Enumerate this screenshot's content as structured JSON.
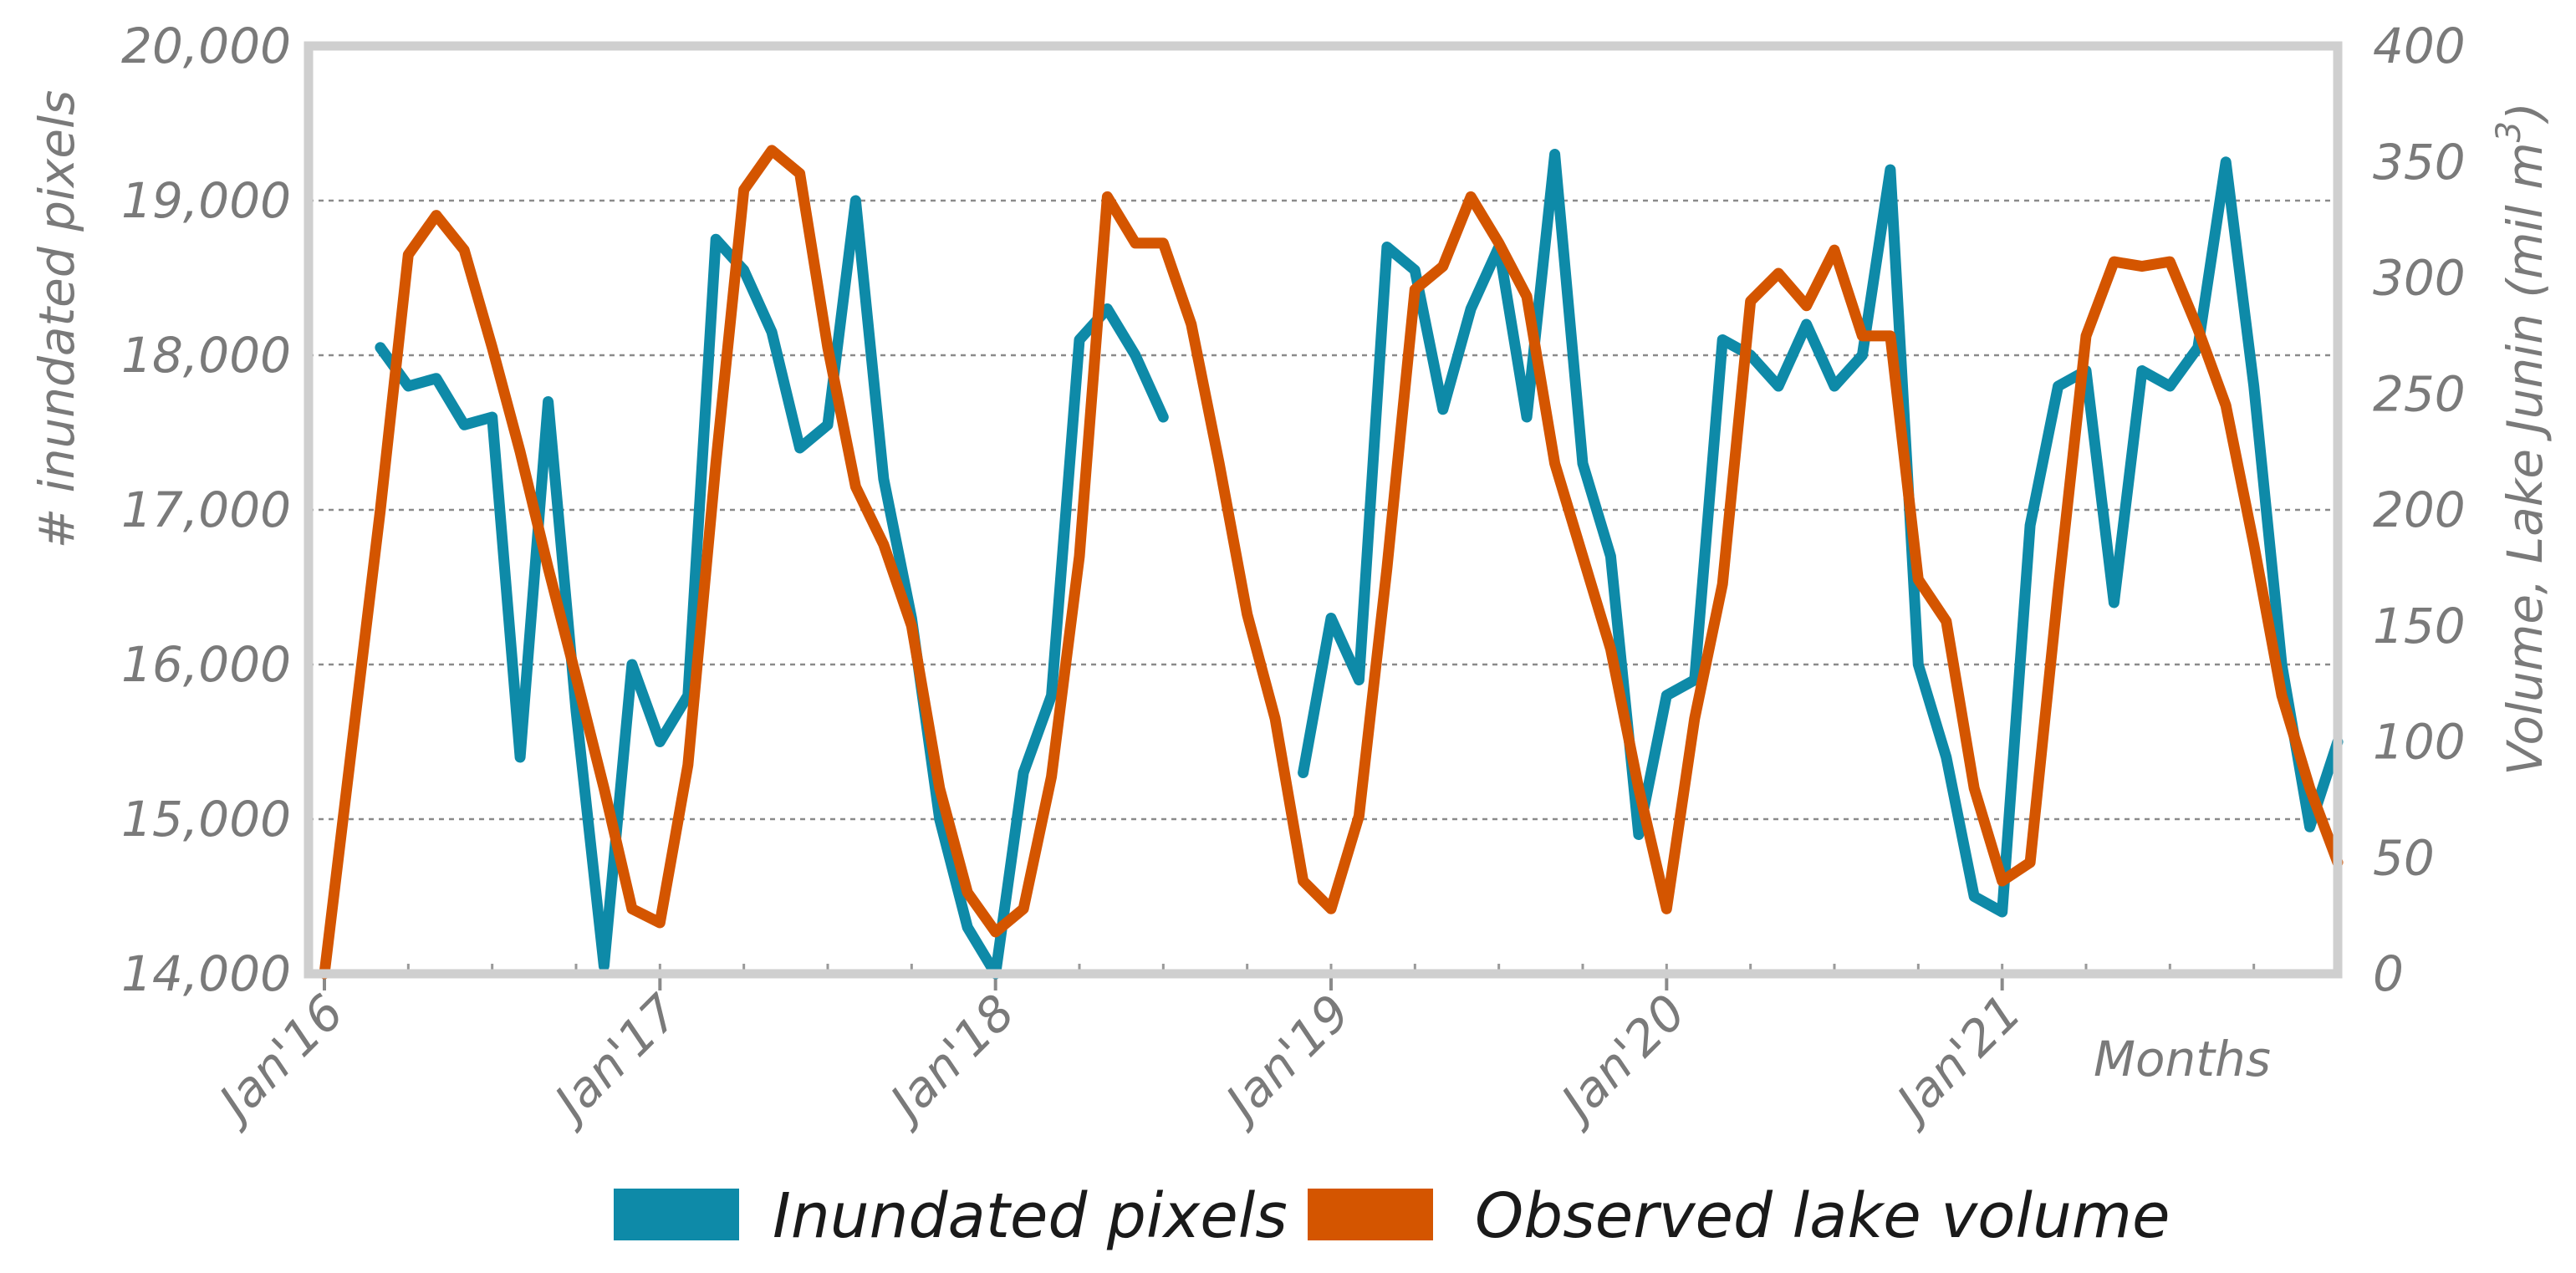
{
  "chart_data": {
    "type": "line",
    "title": "",
    "xlabel": "Months",
    "ylabel": "# inundated pixels",
    "y2label": "Volume, Lake Junin (mil m",
    "y2label_superscript": "3",
    "y2label_close": ")",
    "ylim": [
      14000,
      20000
    ],
    "y2lim": [
      0,
      400
    ],
    "x_range_months": [
      0,
      72
    ],
    "yticks": [
      "14,000",
      "15,000",
      "16,000",
      "17,000",
      "18,000",
      "19,000",
      "20,000"
    ],
    "y2ticks": [
      "0",
      "50",
      "100",
      "150",
      "200",
      "250",
      "300",
      "350",
      "400"
    ],
    "xticks": [
      {
        "label": "Jan'16",
        "month": 0
      },
      {
        "label": "Jan'17",
        "month": 12
      },
      {
        "label": "Jan'18",
        "month": 24
      },
      {
        "label": "Jan'19",
        "month": 36
      },
      {
        "label": "Jan'20",
        "month": 48
      },
      {
        "label": "Jan'21",
        "month": 60
      }
    ],
    "grid": true,
    "legend_position": "bottom",
    "series": [
      {
        "name": "Inundated pixels",
        "axis": "left",
        "color": "#0e8aa8",
        "points": [
          [
            2,
            18050
          ],
          [
            3,
            17800
          ],
          [
            4,
            17850
          ],
          [
            5,
            17550
          ],
          [
            6,
            17600
          ],
          [
            7,
            15400
          ],
          [
            8,
            17700
          ],
          [
            9,
            15700
          ],
          [
            10,
            14050
          ],
          [
            11,
            16000
          ],
          [
            12,
            15500
          ],
          [
            13,
            15800
          ],
          [
            14,
            18750
          ],
          [
            15,
            18550
          ],
          [
            16,
            18150
          ],
          [
            17,
            17400
          ],
          [
            18,
            17550
          ],
          [
            19,
            19000
          ],
          [
            20,
            17200
          ],
          [
            21,
            16300
          ],
          [
            22,
            15000
          ],
          [
            23,
            14300
          ],
          [
            24,
            14000
          ],
          [
            25,
            15300
          ],
          [
            26,
            15800
          ],
          [
            27,
            18100
          ],
          [
            28,
            18300
          ],
          [
            29,
            18000
          ],
          [
            30,
            17600
          ],
          [
            null,
            null
          ],
          [
            35,
            15300
          ],
          [
            36,
            16300
          ],
          [
            37,
            15900
          ],
          [
            38,
            18700
          ],
          [
            39,
            18550
          ],
          [
            40,
            17650
          ],
          [
            41,
            18300
          ],
          [
            42,
            18700
          ],
          [
            43,
            17600
          ],
          [
            44,
            19300
          ],
          [
            45,
            17300
          ],
          [
            46,
            16700
          ],
          [
            47,
            14900
          ],
          [
            48,
            15800
          ],
          [
            49,
            15900
          ],
          [
            50,
            18100
          ],
          [
            51,
            18000
          ],
          [
            52,
            17800
          ],
          [
            53,
            18200
          ],
          [
            54,
            17800
          ],
          [
            55,
            18000
          ],
          [
            56,
            19200
          ],
          [
            57,
            16000
          ],
          [
            58,
            15400
          ],
          [
            59,
            14500
          ],
          [
            60,
            14400
          ],
          [
            61,
            16900
          ],
          [
            62,
            17800
          ],
          [
            63,
            17900
          ],
          [
            64,
            16400
          ],
          [
            65,
            17900
          ],
          [
            66,
            17800
          ],
          [
            67,
            18050
          ],
          [
            68,
            19250
          ],
          [
            69,
            17800
          ],
          [
            70,
            16000
          ],
          [
            71,
            14950
          ],
          [
            72,
            15500
          ]
        ]
      },
      {
        "name": "Observed lake volume",
        "axis": "right",
        "color": "#d45500",
        "points": [
          [
            0,
            0
          ],
          [
            1,
            100
          ],
          [
            2,
            200
          ],
          [
            3,
            310
          ],
          [
            4,
            327
          ],
          [
            5,
            312
          ],
          [
            6,
            270
          ],
          [
            7,
            225
          ],
          [
            8,
            175
          ],
          [
            9,
            128
          ],
          [
            10,
            80
          ],
          [
            11,
            28
          ],
          [
            12,
            22
          ],
          [
            13,
            90
          ],
          [
            14,
            220
          ],
          [
            15,
            338
          ],
          [
            16,
            355
          ],
          [
            17,
            345
          ],
          [
            18,
            270
          ],
          [
            19,
            210
          ],
          [
            20,
            185
          ],
          [
            21,
            150
          ],
          [
            22,
            80
          ],
          [
            23,
            35
          ],
          [
            24,
            18
          ],
          [
            25,
            28
          ],
          [
            26,
            85
          ],
          [
            27,
            180
          ],
          [
            28,
            335
          ],
          [
            29,
            315
          ],
          [
            30,
            315
          ],
          [
            31,
            280
          ],
          [
            32,
            220
          ],
          [
            33,
            155
          ],
          [
            34,
            110
          ],
          [
            35,
            40
          ],
          [
            36,
            28
          ],
          [
            37,
            68
          ],
          [
            38,
            175
          ],
          [
            39,
            295
          ],
          [
            40,
            305
          ],
          [
            41,
            335
          ],
          [
            42,
            315
          ],
          [
            43,
            292
          ],
          [
            44,
            220
          ],
          [
            45,
            180
          ],
          [
            46,
            140
          ],
          [
            47,
            80
          ],
          [
            48,
            28
          ],
          [
            49,
            110
          ],
          [
            50,
            168
          ],
          [
            51,
            290
          ],
          [
            52,
            302
          ],
          [
            53,
            288
          ],
          [
            54,
            312
          ],
          [
            55,
            275
          ],
          [
            56,
            275
          ],
          [
            57,
            170
          ],
          [
            58,
            152
          ],
          [
            59,
            80
          ],
          [
            60,
            40
          ],
          [
            61,
            48
          ],
          [
            62,
            165
          ],
          [
            63,
            275
          ],
          [
            64,
            307
          ],
          [
            65,
            305
          ],
          [
            66,
            307
          ],
          [
            67,
            278
          ],
          [
            68,
            245
          ],
          [
            69,
            185
          ],
          [
            70,
            120
          ],
          [
            71,
            80
          ],
          [
            72,
            48
          ]
        ]
      }
    ]
  },
  "legend": {
    "items": [
      {
        "label": "Inundated pixels",
        "color": "#0e8aa8"
      },
      {
        "label": "Observed lake volume",
        "color": "#d45500"
      }
    ]
  },
  "axis_months_label": "Months"
}
